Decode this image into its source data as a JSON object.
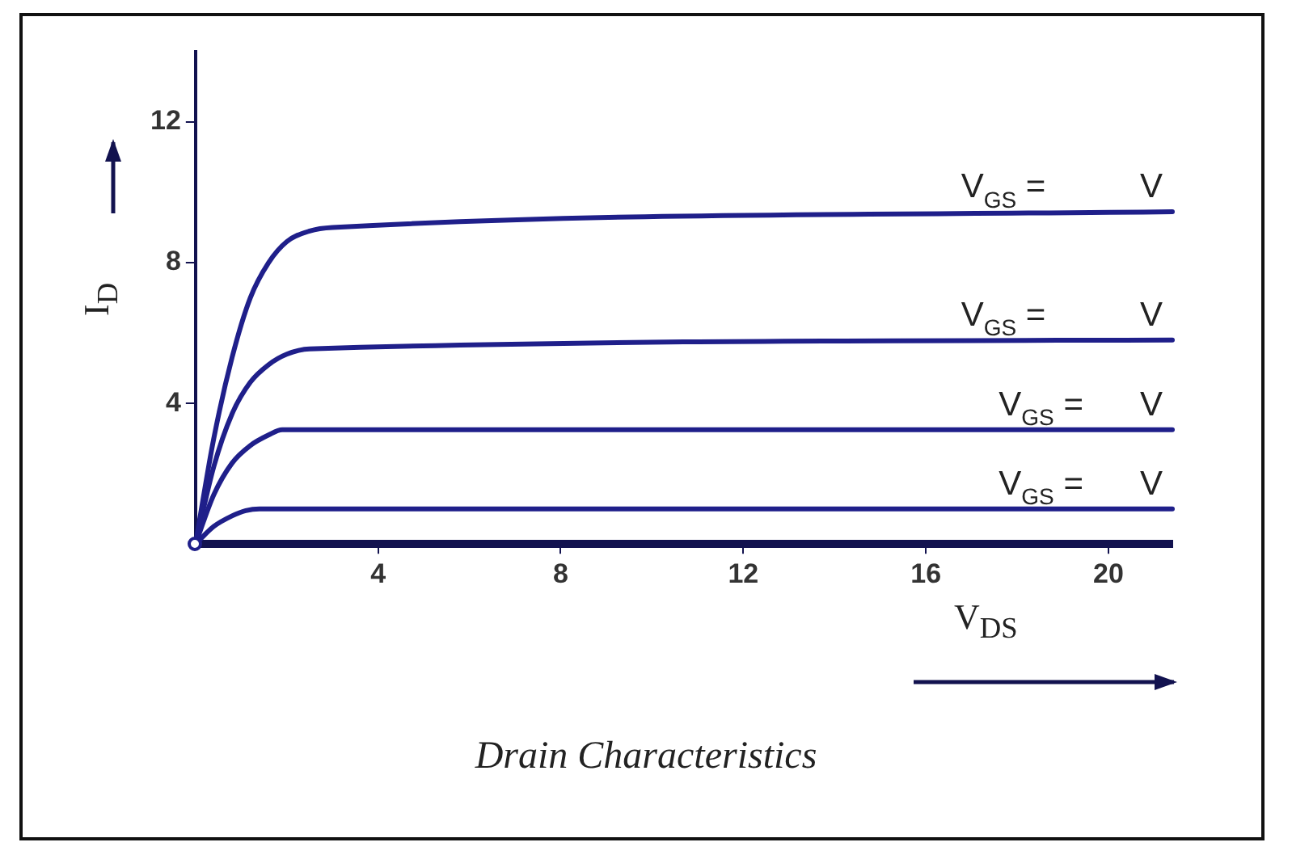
{
  "chart_data": {
    "type": "line",
    "title": "Drain Characteristics",
    "xlabel": "V$_{DS}$",
    "ylabel": "I$_{D}$",
    "xlim": [
      0,
      21.4
    ],
    "ylim": [
      0,
      14
    ],
    "xticks": [
      4,
      8,
      12,
      16,
      20
    ],
    "yticks": [
      4,
      8,
      12
    ],
    "grid": false,
    "legend": false,
    "marker": "none",
    "line_style": "solid",
    "series": [
      {
        "name": "V$_{GS}$ =          V",
        "color": "#1f1f8a",
        "x": [
          0,
          0.4,
          0.8,
          1.2,
          1.6,
          2,
          2.5,
          3,
          21.4
        ],
        "values": [
          0,
          3,
          5.3,
          7,
          8,
          8.6,
          8.9,
          9,
          9.45
        ]
      },
      {
        "name": "V$_{GS}$ =          V",
        "color": "#1f1f8a",
        "x": [
          0,
          0.4,
          0.8,
          1.2,
          1.6,
          2,
          2.5,
          21.4
        ],
        "values": [
          0,
          2.2,
          3.7,
          4.6,
          5.1,
          5.4,
          5.55,
          5.8
        ]
      },
      {
        "name": "V$_{GS}$ =      V",
        "color": "#1f1f8a",
        "x": [
          0,
          0.4,
          0.8,
          1.2,
          1.6,
          1.9,
          21.4
        ],
        "values": [
          0,
          1.4,
          2.3,
          2.8,
          3.1,
          3.25,
          3.25
        ]
      },
      {
        "name": "V$_{GS}$ =      V",
        "color": "#1f1f8a",
        "x": [
          0,
          0.4,
          0.8,
          1.1,
          1.4,
          21.4
        ],
        "values": [
          0,
          0.5,
          0.8,
          0.95,
          1,
          1
        ]
      }
    ]
  }
}
